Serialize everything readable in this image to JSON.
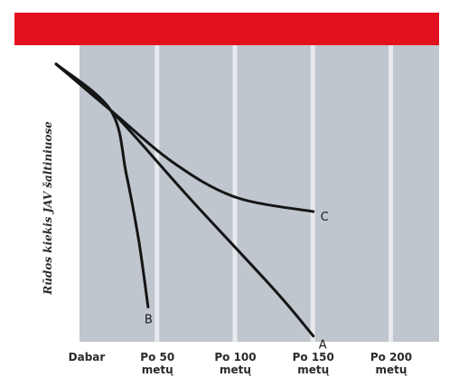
{
  "colors": {
    "header_bar": "#e3101e",
    "plot_band": "#bfc6ce",
    "line": "#151515"
  },
  "chart_data": {
    "type": "line",
    "title": "",
    "xlabel": "",
    "ylabel": "Rūdos kiekis JAV šaltiniuose",
    "x_ticks": [
      {
        "value": 0,
        "label": "Dabar"
      },
      {
        "value": 50,
        "label": "Po 50 metų"
      },
      {
        "value": 100,
        "label": "Po 100 metų"
      },
      {
        "value": 150,
        "label": "Po 150 metų"
      },
      {
        "value": 200,
        "label": "Po 200 metų"
      }
    ],
    "xlim": [
      0,
      200
    ],
    "ylim": [
      0,
      100
    ],
    "grid": true,
    "series": [
      {
        "name": "A",
        "points": [
          [
            -15,
            96
          ],
          [
            20,
            80
          ],
          [
            70,
            50
          ],
          [
            125,
            18
          ],
          [
            150,
            2
          ]
        ]
      },
      {
        "name": "B",
        "points": [
          [
            -15,
            96
          ],
          [
            20,
            80
          ],
          [
            30,
            58
          ],
          [
            38,
            35
          ],
          [
            44,
            12
          ]
        ]
      },
      {
        "name": "C",
        "points": [
          [
            -15,
            96
          ],
          [
            20,
            80
          ],
          [
            60,
            62
          ],
          [
            100,
            50
          ],
          [
            150,
            45
          ]
        ]
      }
    ]
  }
}
